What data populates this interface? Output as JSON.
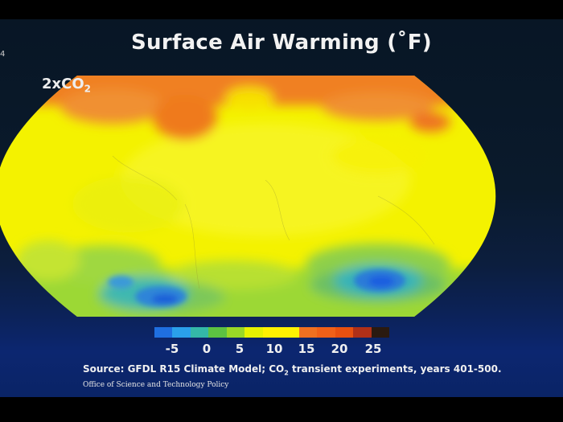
{
  "slide": {
    "title": "Surface Air Warming (˚F)",
    "scenario_prefix": "2xCO",
    "scenario_sub": "2",
    "edge_mark": "4"
  },
  "legend": {
    "ticks": [
      "-5",
      "0",
      "5",
      "10",
      "15",
      "20",
      "25"
    ],
    "colors": [
      "#1f6fe0",
      "#2aa0ea",
      "#34b8a8",
      "#5cc242",
      "#9ad826",
      "#e6f200",
      "#fff200",
      "#fff200",
      "#f07020",
      "#f06018",
      "#e85010",
      "#b03018",
      "#2a1a10"
    ]
  },
  "footer": {
    "source_prefix": "Source: GFDL R15 Climate Model; CO",
    "source_sub": "2",
    "source_suffix": " transient experiments, years 401-500.",
    "office": "Office of Science and Technology Policy"
  }
}
